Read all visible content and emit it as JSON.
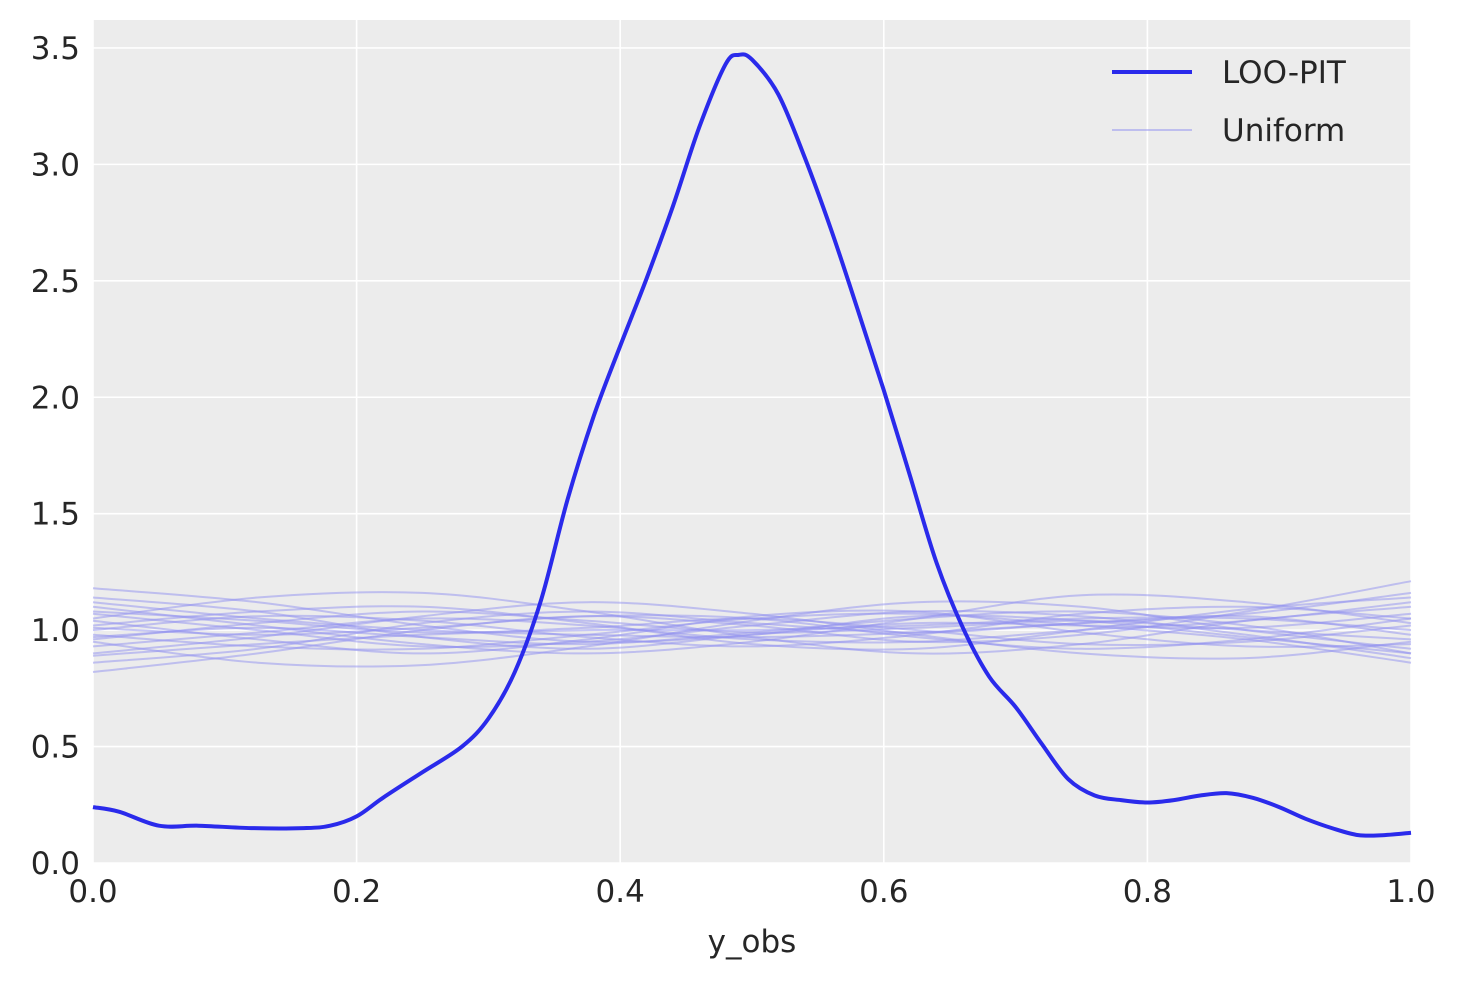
{
  "chart_data": {
    "type": "line",
    "title": "",
    "xlabel": "y_obs",
    "ylabel": "",
    "xlim": [
      0.0,
      1.0
    ],
    "ylim": [
      0.0,
      3.62
    ],
    "grid": true,
    "legend_position": "top-right",
    "x_ticks": [
      "0.0",
      "0.2",
      "0.4",
      "0.6",
      "0.8",
      "1.0"
    ],
    "x_tick_values": [
      0.0,
      0.2,
      0.4,
      0.6,
      0.8,
      1.0
    ],
    "y_ticks": [
      "0.0",
      "0.5",
      "1.0",
      "1.5",
      "2.0",
      "2.5",
      "3.0",
      "3.5"
    ],
    "y_tick_values": [
      0.0,
      0.5,
      1.0,
      1.5,
      2.0,
      2.5,
      3.0,
      3.5
    ],
    "colors": {
      "loo_pit": "#2a2aeb",
      "uniform": "#8f8ff0",
      "plot_background": "#ececec",
      "grid": "#ffffff"
    },
    "series": [
      {
        "name": "LOO-PIT",
        "x": [
          0.0,
          0.02,
          0.05,
          0.08,
          0.12,
          0.16,
          0.18,
          0.2,
          0.22,
          0.25,
          0.28,
          0.3,
          0.32,
          0.34,
          0.36,
          0.38,
          0.4,
          0.42,
          0.44,
          0.46,
          0.48,
          0.49,
          0.5,
          0.52,
          0.54,
          0.56,
          0.58,
          0.6,
          0.62,
          0.64,
          0.66,
          0.68,
          0.7,
          0.72,
          0.74,
          0.76,
          0.78,
          0.8,
          0.82,
          0.84,
          0.86,
          0.88,
          0.9,
          0.92,
          0.94,
          0.96,
          0.98,
          1.0
        ],
        "y": [
          0.24,
          0.22,
          0.16,
          0.16,
          0.15,
          0.15,
          0.16,
          0.2,
          0.28,
          0.39,
          0.5,
          0.62,
          0.82,
          1.13,
          1.56,
          1.92,
          2.22,
          2.51,
          2.82,
          3.16,
          3.43,
          3.47,
          3.45,
          3.3,
          3.03,
          2.72,
          2.38,
          2.03,
          1.66,
          1.29,
          1.01,
          0.8,
          0.67,
          0.51,
          0.36,
          0.29,
          0.27,
          0.26,
          0.27,
          0.29,
          0.3,
          0.28,
          0.24,
          0.19,
          0.15,
          0.12,
          0.12,
          0.13
        ]
      },
      {
        "name": "Uniform",
        "curves": [
          {
            "x": [
              0.0,
              0.125,
              0.25,
              0.375,
              0.5,
              0.625,
              0.75,
              0.875,
              1.0
            ],
            "y": [
              1.18,
              1.12,
              1.02,
              0.95,
              0.98,
              1.06,
              1.04,
              0.97,
              0.9
            ]
          },
          {
            "x": [
              0.0,
              0.125,
              0.25,
              0.375,
              0.5,
              0.625,
              0.75,
              0.875,
              1.0
            ],
            "y": [
              0.82,
              0.9,
              1.0,
              1.06,
              1.02,
              0.95,
              0.98,
              1.08,
              1.21
            ]
          },
          {
            "x": [
              0.0,
              0.125,
              0.25,
              0.375,
              0.5,
              0.625,
              0.75,
              0.875,
              1.0
            ],
            "y": [
              1.05,
              1.14,
              1.16,
              1.08,
              0.97,
              0.9,
              0.94,
              1.04,
              1.1
            ]
          },
          {
            "x": [
              0.0,
              0.125,
              0.25,
              0.375,
              0.5,
              0.625,
              0.75,
              0.875,
              1.0
            ],
            "y": [
              0.95,
              0.86,
              0.85,
              0.93,
              1.04,
              1.12,
              1.1,
              1.0,
              0.92
            ]
          },
          {
            "x": [
              0.0,
              0.125,
              0.25,
              0.375,
              0.5,
              0.625,
              0.75,
              0.875,
              1.0
            ],
            "y": [
              1.1,
              1.02,
              0.94,
              0.9,
              0.95,
              1.05,
              1.15,
              1.12,
              1.03
            ]
          },
          {
            "x": [
              0.0,
              0.125,
              0.25,
              0.375,
              0.5,
              0.625,
              0.75,
              0.875,
              1.0
            ],
            "y": [
              0.9,
              0.97,
              1.06,
              1.12,
              1.07,
              0.98,
              0.9,
              0.88,
              0.95
            ]
          },
          {
            "x": [
              0.0,
              0.125,
              0.25,
              0.375,
              0.5,
              0.625,
              0.75,
              0.875,
              1.0
            ],
            "y": [
              1.02,
              1.08,
              1.1,
              1.03,
              0.94,
              0.92,
              1.0,
              1.09,
              1.14
            ]
          },
          {
            "x": [
              0.0,
              0.125,
              0.25,
              0.375,
              0.5,
              0.625,
              0.75,
              0.875,
              1.0
            ],
            "y": [
              0.98,
              0.93,
              0.92,
              0.98,
              1.05,
              1.07,
              1.02,
              0.96,
              0.86
            ]
          },
          {
            "x": [
              0.0,
              0.125,
              0.25,
              0.375,
              0.5,
              0.625,
              0.75,
              0.875,
              1.0
            ],
            "y": [
              1.14,
              1.08,
              0.97,
              0.92,
              0.98,
              1.03,
              1.02,
              1.01,
              1.07
            ]
          },
          {
            "x": [
              0.0,
              0.125,
              0.25,
              0.375,
              0.5,
              0.625,
              0.75,
              0.875,
              1.0
            ],
            "y": [
              0.86,
              0.92,
              1.03,
              1.08,
              1.03,
              0.99,
              1.03,
              1.06,
              0.98
            ]
          },
          {
            "x": [
              0.0,
              0.125,
              0.25,
              0.375,
              0.5,
              0.625,
              0.75,
              0.875,
              1.0
            ],
            "y": [
              1.07,
              1.0,
              0.93,
              0.95,
              1.02,
              1.08,
              1.06,
              0.98,
              0.88
            ]
          },
          {
            "x": [
              0.0,
              0.125,
              0.25,
              0.375,
              0.5,
              0.625,
              0.75,
              0.875,
              1.0
            ],
            "y": [
              0.93,
              0.99,
              1.05,
              1.02,
              0.96,
              0.95,
              1.0,
              1.04,
              1.12
            ]
          },
          {
            "x": [
              0.0,
              0.125,
              0.25,
              0.375,
              0.5,
              0.625,
              0.75,
              0.875,
              1.0
            ],
            "y": [
              1.0,
              1.06,
              1.04,
              0.97,
              0.93,
              0.98,
              1.07,
              1.1,
              1.05
            ]
          },
          {
            "x": [
              0.0,
              0.125,
              0.25,
              0.375,
              0.5,
              0.625,
              0.75,
              0.875,
              1.0
            ],
            "y": [
              1.04,
              0.96,
              0.9,
              0.96,
              1.06,
              1.08,
              0.99,
              0.93,
              0.94
            ]
          },
          {
            "x": [
              0.0,
              0.125,
              0.25,
              0.375,
              0.5,
              0.625,
              0.75,
              0.875,
              1.0
            ],
            "y": [
              0.96,
              1.03,
              1.08,
              1.04,
              0.99,
              1.01,
              1.04,
              1.0,
              0.96
            ]
          },
          {
            "x": [
              0.0,
              0.125,
              0.25,
              0.375,
              0.5,
              0.625,
              0.75,
              0.875,
              1.0
            ],
            "y": [
              1.08,
              1.04,
              0.99,
              1.01,
              1.05,
              1.0,
              0.94,
              0.95,
              1.02
            ]
          },
          {
            "x": [
              0.0,
              0.125,
              0.25,
              0.375,
              0.5,
              0.625,
              0.75,
              0.875,
              1.0
            ],
            "y": [
              0.89,
              0.94,
              0.98,
              1.0,
              1.0,
              1.02,
              1.05,
              1.05,
              1.0
            ]
          },
          {
            "x": [
              0.0,
              0.125,
              0.25,
              0.375,
              0.5,
              0.625,
              0.75,
              0.875,
              1.0
            ],
            "y": [
              1.12,
              1.05,
              1.0,
              0.98,
              0.97,
              0.99,
              1.03,
              1.07,
              1.16
            ]
          },
          {
            "x": [
              0.0,
              0.125,
              0.25,
              0.375,
              0.5,
              0.625,
              0.75,
              0.875,
              1.0
            ],
            "y": [
              1.01,
              0.98,
              1.01,
              1.06,
              1.05,
              0.97,
              0.92,
              0.96,
              1.05
            ]
          },
          {
            "x": [
              0.0,
              0.125,
              0.25,
              0.375,
              0.5,
              0.625,
              0.75,
              0.875,
              1.0
            ],
            "y": [
              0.97,
              1.01,
              0.97,
              0.94,
              0.99,
              1.05,
              1.08,
              1.02,
              0.9
            ]
          }
        ]
      }
    ]
  }
}
